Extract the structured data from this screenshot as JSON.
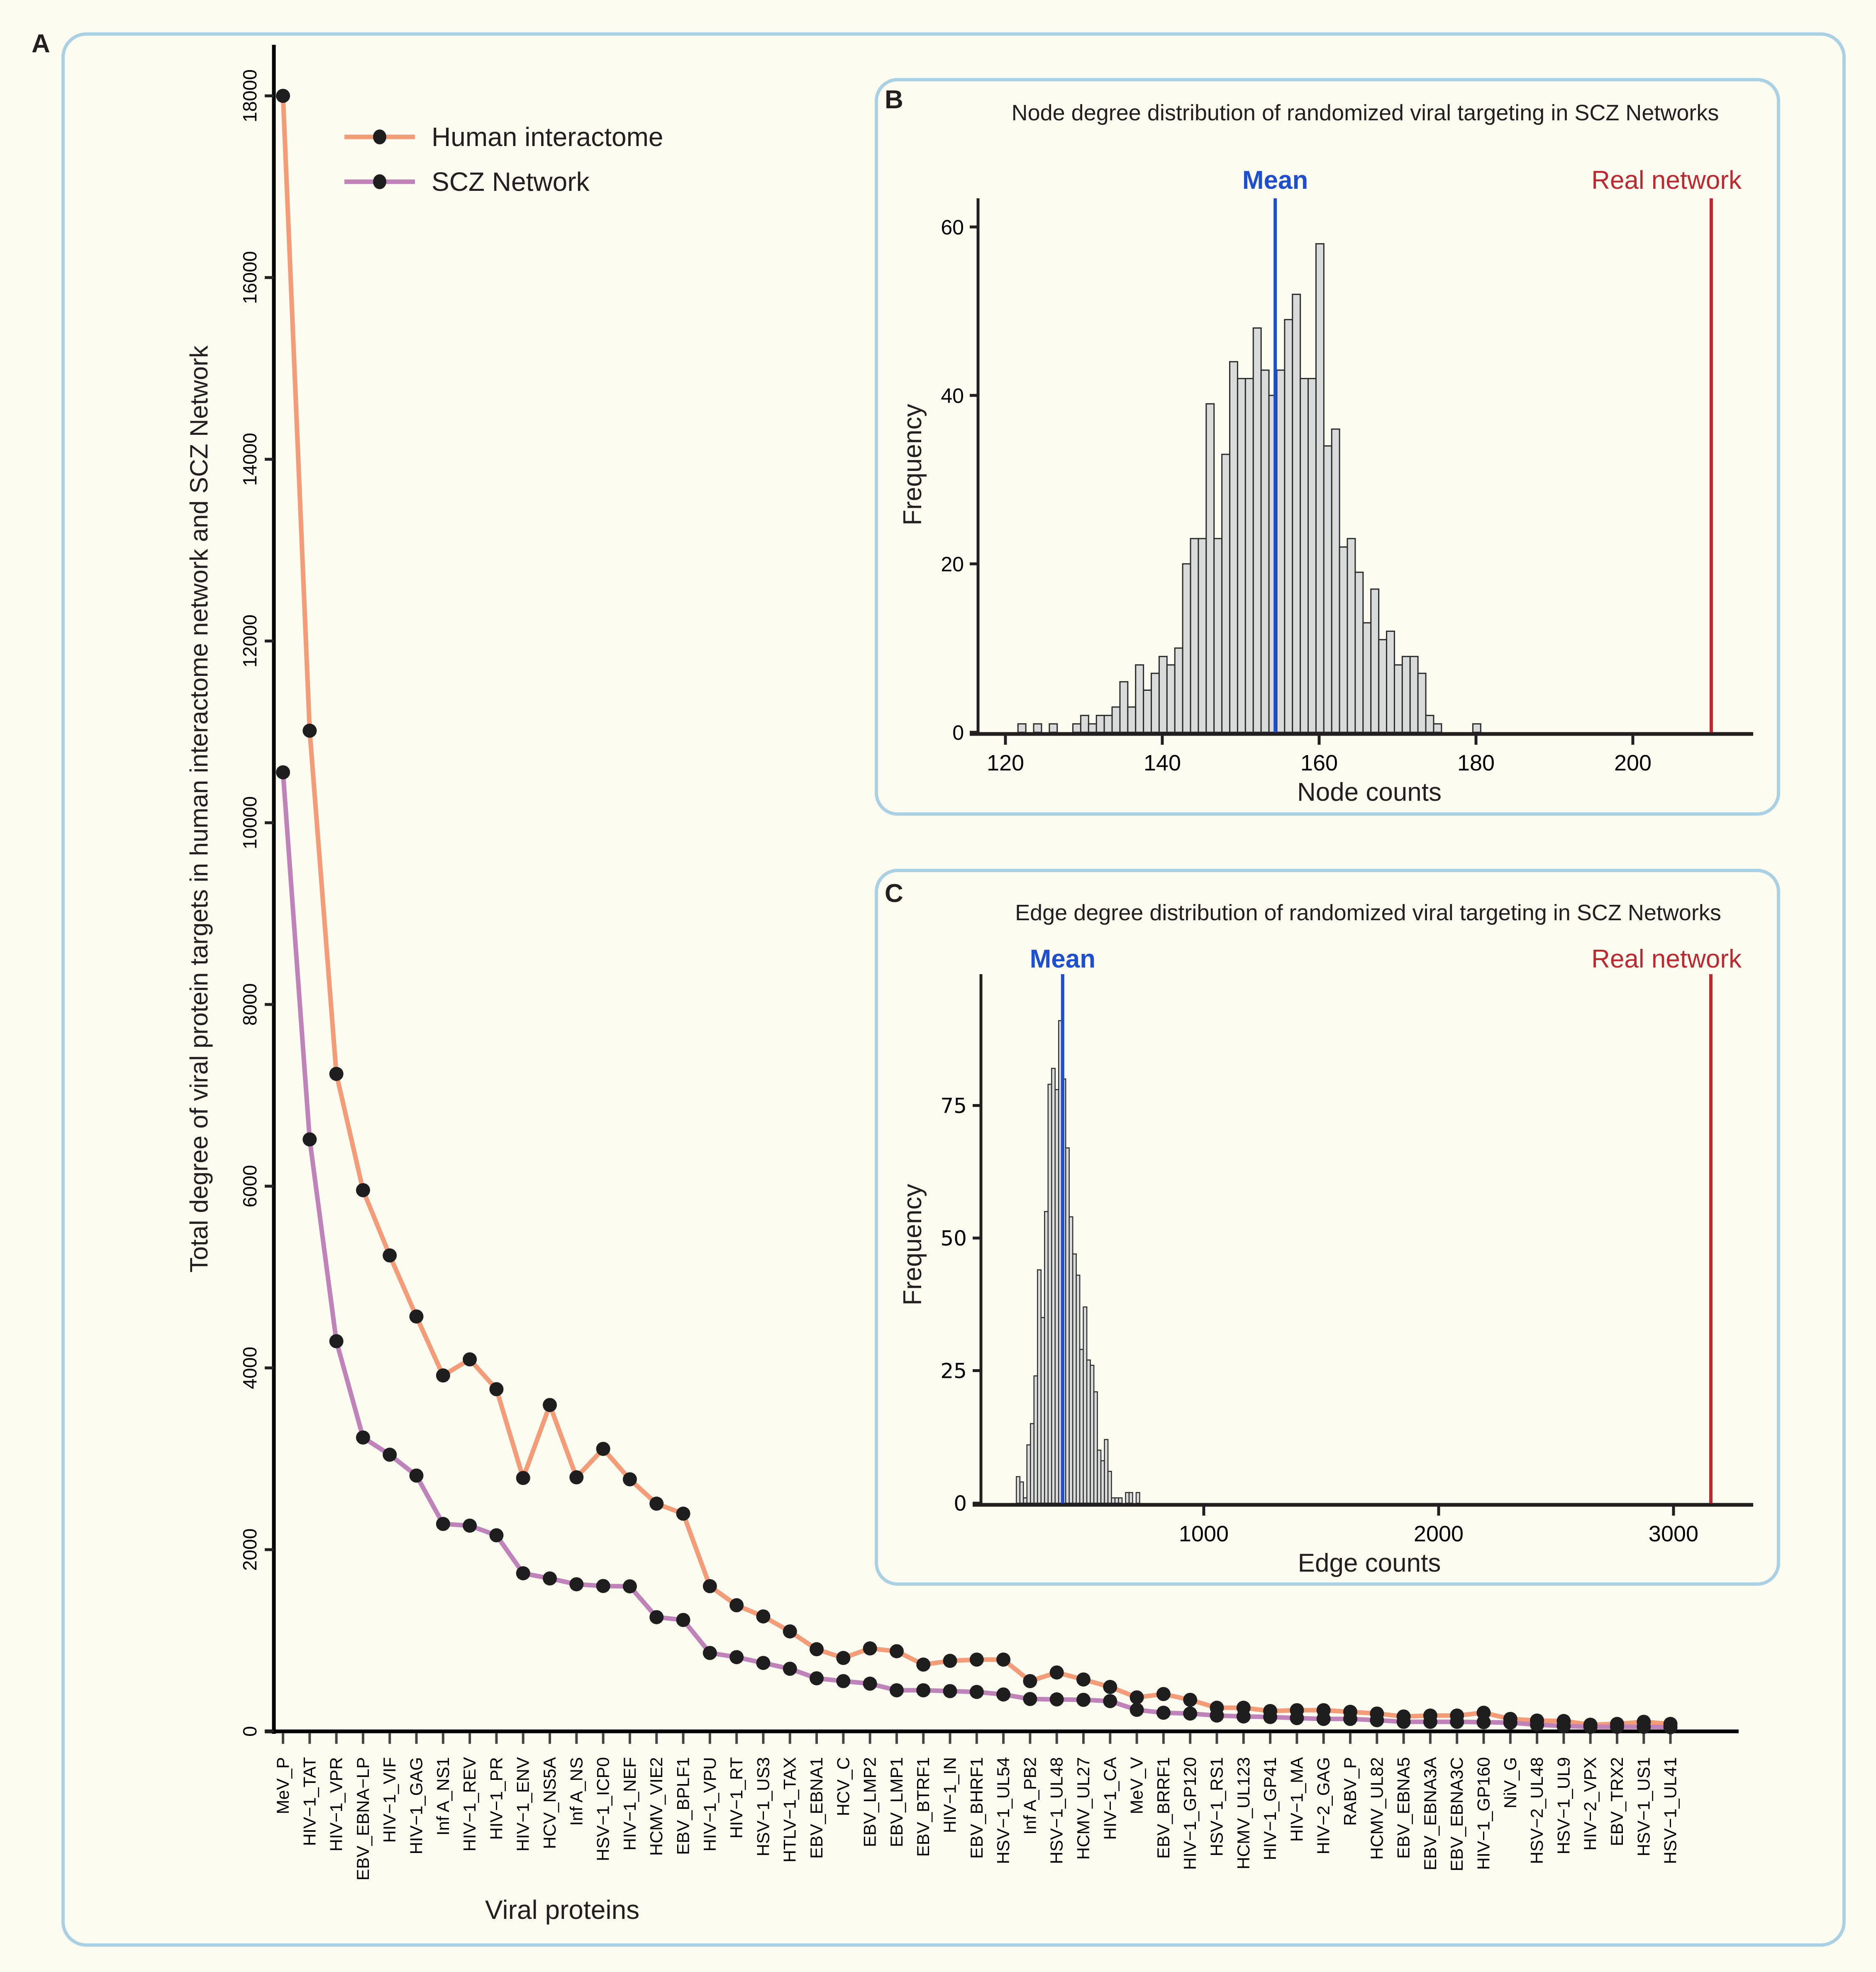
{
  "panels": {
    "A": {
      "label": "A"
    },
    "B": {
      "label": "B"
    },
    "C": {
      "label": "C"
    }
  },
  "chart_data": [
    {
      "id": "A",
      "type": "line",
      "title": "",
      "xlabel": "Viral proteins",
      "ylabel": "Total degree of viral protein targets in human interactome network and SCZ Network",
      "ylim": [
        0,
        18500
      ],
      "yticks": [
        0,
        2000,
        4000,
        6000,
        8000,
        10000,
        12000,
        14000,
        16000,
        18000
      ],
      "legend_position": "top-left",
      "grid": false,
      "categories": [
        "MeV_P",
        "HIV−1_TAT",
        "HIV−1_VPR",
        "EBV_EBNA−LP",
        "HIV−1_VIF",
        "HIV−1_GAG",
        "Inf A_NS1",
        "HIV−1_REV",
        "HIV−1_PR",
        "HIV−1_ENV",
        "HCV_NS5A",
        "Inf A_NS",
        "HSV−1_ICP0",
        "HIV−1_NEF",
        "HCMV_VIE2",
        "EBV_BPLF1",
        "HIV−1_VPU",
        "HIV−1_RT",
        "HSV−1_US3",
        "HTLV−1_TAX",
        "EBV_EBNA1",
        "HCV_C",
        "EBV_LMP2",
        "EBV_LMP1",
        "EBV_BTRF1",
        "HIV−1_IN",
        "EBV_BHRF1",
        "HSV−1_UL54",
        "Inf A_PB2",
        "HSV−1_UL48",
        "HCMV_UL27",
        "HIV−1_CA",
        "MeV_V",
        "EBV_BRRF1",
        "HIV−1_GP120",
        "HSV−1_RS1",
        "HCMV_UL123",
        "HIV−1_GP41",
        "HIV−1_MA",
        "HIV−2_GAG",
        "RABV_P",
        "HCMV_UL82",
        "EBV_EBNA5",
        "EBV_EBNA3A",
        "EBV_EBNA3C",
        "HIV−1_GP160",
        "NiV_G",
        "HSV−2_UL48",
        "HSV−1_UL9",
        "HIV−2_VPX",
        "EBV_TRX2",
        "HSV−1_US1",
        "HSV−1_UL41"
      ],
      "series": [
        {
          "name": "Human interactome",
          "color": "#f39c77",
          "values": [
            18000,
            11013,
            7236,
            5956,
            5238,
            4566,
            3917,
            4094,
            3766,
            2789,
            3592,
            2796,
            3109,
            2774,
            2506,
            2396,
            1598,
            1388,
            1265,
            1100,
            904,
            808,
            913,
            882,
            735,
            776,
            790,
            790,
            553,
            648,
            571,
            489,
            374,
            411,
            347,
            260,
            260,
            224,
            233,
            233,
            215,
            196,
            164,
            174,
            174,
            205,
            137,
            119,
            114,
            73,
            82,
            105,
            82
          ]
        },
        {
          "name": "SCZ Network",
          "color": "#bf83ba",
          "values": [
            10555,
            6515,
            4294,
            3234,
            3045,
            2815,
            2283,
            2264,
            2158,
            1740,
            1683,
            1619,
            1600,
            1596,
            1257,
            1226,
            863,
            817,
            753,
            689,
            584,
            553,
            525,
            452,
            452,
            443,
            434,
            406,
            356,
            352,
            347,
            333,
            237,
            205,
            196,
            174,
            164,
            158,
            146,
            137,
            137,
            123,
            105,
            105,
            105,
            101,
            96,
            73,
            59,
            50,
            50,
            50,
            46
          ]
        }
      ]
    },
    {
      "id": "B",
      "type": "bar",
      "title": "Node degree distribution of randomized viral targeting in SCZ Networks",
      "xlabel": "Node counts",
      "ylabel": "Frequency",
      "xlim": [
        116,
        215
      ],
      "ylim": [
        0,
        64
      ],
      "xticks": [
        120,
        140,
        160,
        180,
        200
      ],
      "yticks": [
        0,
        20,
        40,
        60
      ],
      "bin_width": 1,
      "bins_start": [
        121.6,
        122.6,
        123.6,
        124.6,
        125.6,
        126.6,
        127.6,
        128.6,
        129.6,
        130.6,
        131.6,
        132.6,
        133.6,
        134.6,
        135.6,
        136.6,
        137.6,
        138.6,
        139.6,
        140.6,
        141.6,
        142.6,
        143.6,
        144.6,
        145.6,
        146.6,
        147.6,
        148.6,
        149.6,
        150.6,
        151.6,
        152.6,
        153.6,
        154.6,
        155.6,
        156.6,
        157.6,
        158.6,
        159.6,
        160.6,
        161.6,
        162.6,
        163.6,
        164.6,
        165.6,
        166.6,
        167.6,
        168.6,
        169.6,
        170.6,
        171.6,
        172.6,
        173.6,
        174.6,
        179.6
      ],
      "frequencies": [
        1,
        0,
        1,
        0,
        1,
        0,
        0,
        1,
        2,
        1,
        2,
        2,
        3,
        6,
        3,
        8,
        5,
        7,
        9,
        8,
        10,
        20,
        23,
        23,
        39,
        23,
        33,
        44,
        42,
        42,
        48,
        43,
        40,
        43,
        49,
        52,
        42,
        42,
        58,
        34,
        36,
        22,
        23,
        19,
        13,
        17,
        11,
        12,
        8,
        9,
        9,
        7,
        2,
        1,
        1
      ],
      "annotations": [
        {
          "label": "Mean",
          "value": 154.4,
          "color": "#1f4fd1"
        },
        {
          "label": "Real network",
          "value": 210,
          "color": "#c0282f"
        }
      ]
    },
    {
      "id": "C",
      "type": "bar",
      "title": "Edge degree distribution of randomized viral targeting in SCZ Networks",
      "xlabel": "Edge counts",
      "ylabel": "Frequency",
      "xlim": [
        51,
        3320
      ],
      "ylim": [
        0,
        98
      ],
      "xticks": [
        1000,
        2000,
        3000
      ],
      "yticks": [
        0,
        25,
        50,
        75
      ],
      "bin_width": 15,
      "bins_start": [
        202,
        217,
        232,
        247,
        262,
        277,
        292,
        307,
        322,
        337,
        352,
        367,
        382,
        397,
        412,
        427,
        442,
        457,
        472,
        487,
        502,
        517,
        532,
        547,
        562,
        577,
        592,
        607,
        622,
        637,
        652,
        667,
        682,
        697,
        712
      ],
      "frequencies": [
        5,
        4,
        1,
        11,
        15,
        24,
        44,
        35,
        55,
        79,
        82,
        78,
        91,
        80,
        67,
        54,
        47,
        43,
        29,
        37,
        27,
        26,
        21,
        10,
        8,
        12,
        6,
        1,
        1,
        1,
        0,
        2,
        2,
        0,
        2
      ],
      "annotations": [
        {
          "label": "Mean",
          "value": 399,
          "color": "#1f4fd1"
        },
        {
          "label": "Real network",
          "value": 3159,
          "color": "#c0282f"
        }
      ]
    }
  ]
}
